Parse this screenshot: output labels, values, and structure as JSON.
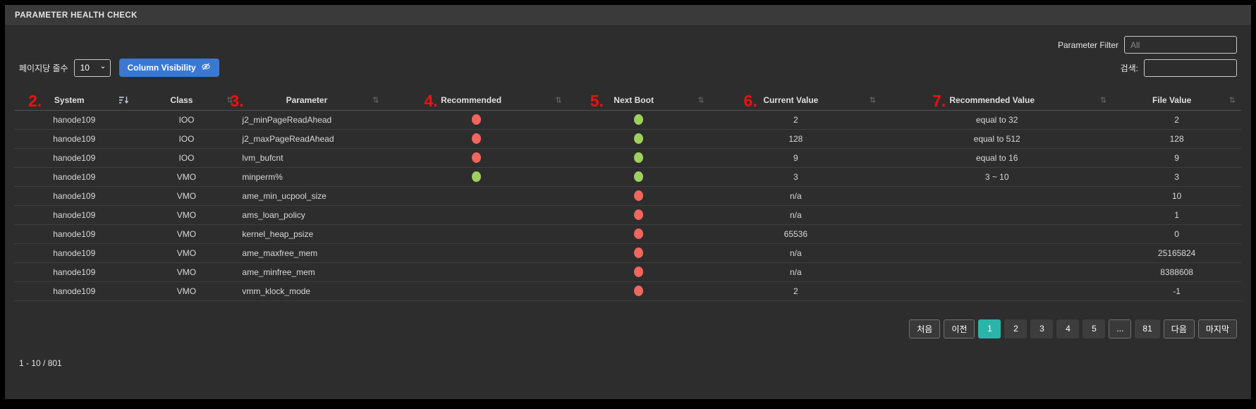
{
  "title": "PARAMETER HEALTH CHECK",
  "controls": {
    "page_size_label": "페이지당 줄수",
    "page_size_value": "10",
    "column_visibility_label": "Column Visibility",
    "parameter_filter_label": "Parameter Filter",
    "parameter_filter_placeholder": "All",
    "search_label": "검색:",
    "search_value": ""
  },
  "icons": {
    "sort_both": "⇅",
    "chevron_down": "⌄"
  },
  "colors": {
    "annotation_red": "#ee1111",
    "status_red": "#f2665c",
    "status_green": "#9ed05f",
    "button_blue": "#3a78d2",
    "active_page_teal": "#2bb5aa",
    "panel_bg": "#2d2d2d",
    "titlebar_bg": "#3a3a3a"
  },
  "table": {
    "columns": [
      {
        "key": "system",
        "label": "System",
        "annotation": "2.",
        "sort": "active"
      },
      {
        "key": "class",
        "label": "Class",
        "annotation": "",
        "sort": "both"
      },
      {
        "key": "parameter",
        "label": "Parameter",
        "annotation": "3.",
        "sort": "both"
      },
      {
        "key": "recommended",
        "label": "Recommended",
        "annotation": "4.",
        "sort": "both"
      },
      {
        "key": "next_boot",
        "label": "Next Boot",
        "annotation": "5.",
        "sort": "both"
      },
      {
        "key": "current_value",
        "label": "Current Value",
        "annotation": "6.",
        "sort": "both"
      },
      {
        "key": "recommended_value",
        "label": "Recommended Value",
        "annotation": "7.",
        "sort": "both"
      },
      {
        "key": "file_value",
        "label": "File Value",
        "annotation": "",
        "sort": "both"
      }
    ],
    "rows": [
      {
        "system": "hanode109",
        "class": "IOO",
        "parameter": "j2_minPageReadAhead",
        "recommended": "red",
        "next_boot": "green",
        "current_value": "2",
        "recommended_value": "equal to 32",
        "file_value": "2"
      },
      {
        "system": "hanode109",
        "class": "IOO",
        "parameter": "j2_maxPageReadAhead",
        "recommended": "red",
        "next_boot": "green",
        "current_value": "128",
        "recommended_value": "equal to 512",
        "file_value": "128"
      },
      {
        "system": "hanode109",
        "class": "IOO",
        "parameter": "lvm_bufcnt",
        "recommended": "red",
        "next_boot": "green",
        "current_value": "9",
        "recommended_value": "equal to 16",
        "file_value": "9"
      },
      {
        "system": "hanode109",
        "class": "VMO",
        "parameter": "minperm%",
        "recommended": "green",
        "next_boot": "green",
        "current_value": "3",
        "recommended_value": "3 ~ 10",
        "file_value": "3"
      },
      {
        "system": "hanode109",
        "class": "VMO",
        "parameter": "ame_min_ucpool_size",
        "recommended": "",
        "next_boot": "red",
        "current_value": "n/a",
        "recommended_value": "",
        "file_value": "10"
      },
      {
        "system": "hanode109",
        "class": "VMO",
        "parameter": "ams_loan_policy",
        "recommended": "",
        "next_boot": "red",
        "current_value": "n/a",
        "recommended_value": "",
        "file_value": "1"
      },
      {
        "system": "hanode109",
        "class": "VMO",
        "parameter": "kernel_heap_psize",
        "recommended": "",
        "next_boot": "red",
        "current_value": "65536",
        "recommended_value": "",
        "file_value": "0"
      },
      {
        "system": "hanode109",
        "class": "VMO",
        "parameter": "ame_maxfree_mem",
        "recommended": "",
        "next_boot": "red",
        "current_value": "n/a",
        "recommended_value": "",
        "file_value": "25165824"
      },
      {
        "system": "hanode109",
        "class": "VMO",
        "parameter": "ame_minfree_mem",
        "recommended": "",
        "next_boot": "red",
        "current_value": "n/a",
        "recommended_value": "",
        "file_value": "8388608"
      },
      {
        "system": "hanode109",
        "class": "VMO",
        "parameter": "vmm_klock_mode",
        "recommended": "",
        "next_boot": "red",
        "current_value": "2",
        "recommended_value": "",
        "file_value": "-1"
      }
    ]
  },
  "pagination": {
    "info": "1 - 10 / 801",
    "buttons": [
      {
        "label": "처음",
        "name": "first",
        "style": "bordered",
        "active": false
      },
      {
        "label": "이전",
        "name": "prev",
        "style": "bordered",
        "active": false
      },
      {
        "label": "1",
        "name": "page-1",
        "style": "page",
        "active": true
      },
      {
        "label": "2",
        "name": "page-2",
        "style": "page",
        "active": false
      },
      {
        "label": "3",
        "name": "page-3",
        "style": "page",
        "active": false
      },
      {
        "label": "4",
        "name": "page-4",
        "style": "page",
        "active": false
      },
      {
        "label": "5",
        "name": "page-5",
        "style": "page",
        "active": false
      },
      {
        "label": "...",
        "name": "ellipsis",
        "style": "bordered",
        "active": false
      },
      {
        "label": "81",
        "name": "page-81",
        "style": "page",
        "active": false
      },
      {
        "label": "다음",
        "name": "next",
        "style": "bordered",
        "active": false
      },
      {
        "label": "마지막",
        "name": "last",
        "style": "bordered",
        "active": false
      }
    ]
  }
}
